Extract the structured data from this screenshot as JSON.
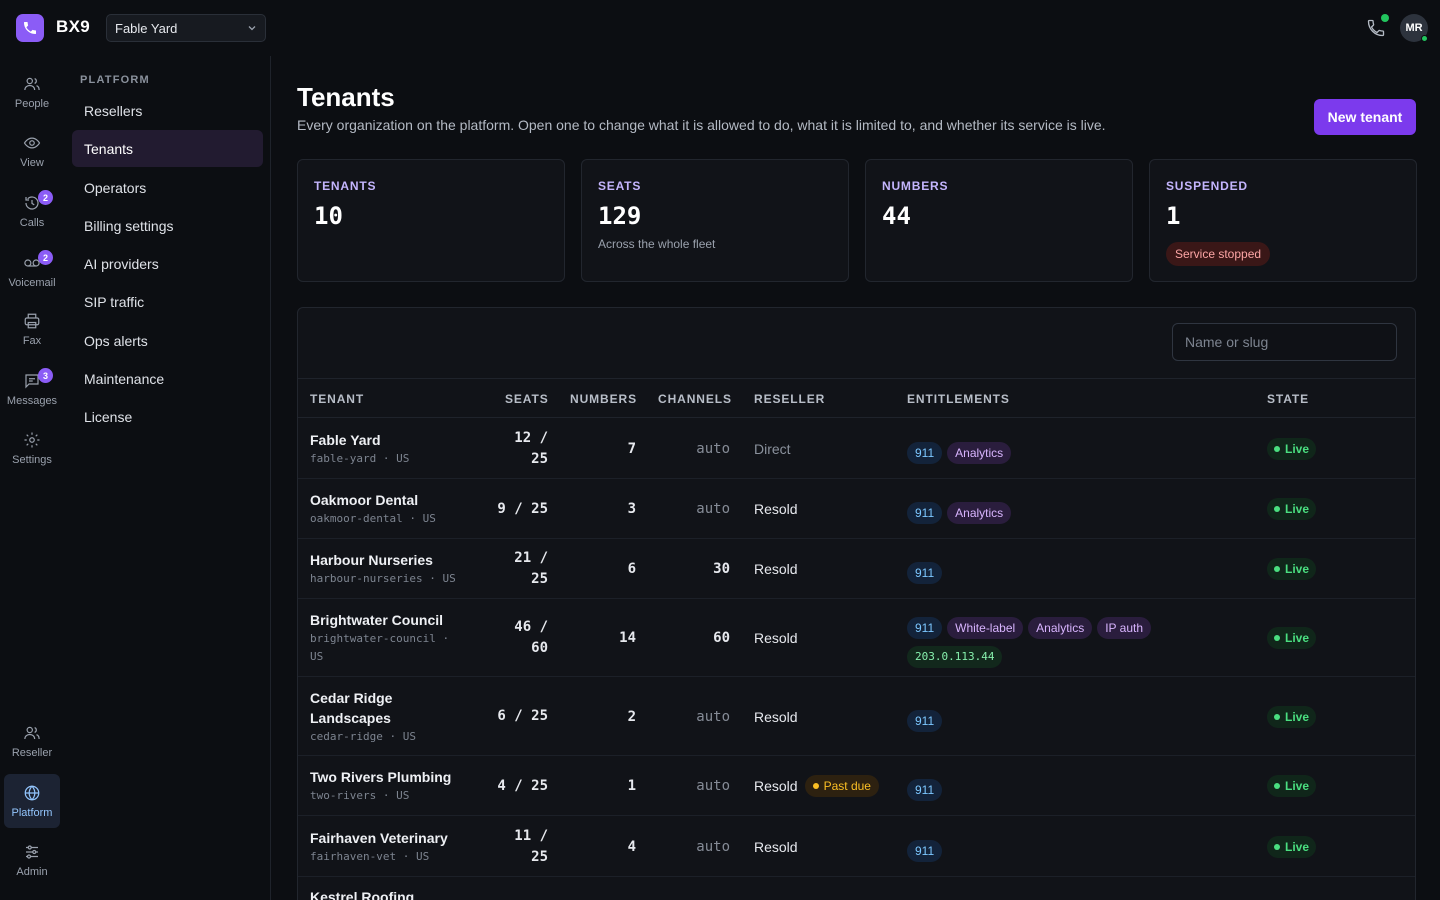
{
  "app": {
    "brand": "BX9",
    "workspace": "Fable Yard",
    "avatar": "MR"
  },
  "rail": [
    {
      "label": "People",
      "icon": "people-icon"
    },
    {
      "label": "View",
      "icon": "eye-icon"
    },
    {
      "label": "Calls",
      "icon": "calls-history-icon",
      "badge": "2"
    },
    {
      "label": "Voicemail",
      "icon": "voicemail-icon",
      "badge": "2"
    },
    {
      "label": "Fax",
      "icon": "printer-icon"
    },
    {
      "label": "Messages",
      "icon": "message-icon",
      "badge": "3"
    },
    {
      "label": "Settings",
      "icon": "gear-icon"
    },
    {
      "label": "Reseller",
      "icon": "reseller-icon"
    },
    {
      "label": "Platform",
      "icon": "globe-icon",
      "active": true
    },
    {
      "label": "Admin",
      "icon": "sliders-icon"
    }
  ],
  "subnav": {
    "heading": "PLATFORM",
    "items": [
      {
        "label": "Resellers"
      },
      {
        "label": "Tenants",
        "active": true
      },
      {
        "label": "Operators"
      },
      {
        "label": "Billing settings"
      },
      {
        "label": "AI providers"
      },
      {
        "label": "SIP traffic"
      },
      {
        "label": "Ops alerts"
      },
      {
        "label": "Maintenance"
      },
      {
        "label": "License"
      }
    ]
  },
  "page": {
    "title": "Tenants",
    "subtitle": "Every organization on the platform. Open one to change what it is allowed to do, what it is limited to, and whether its service is live.",
    "new_button": "New tenant"
  },
  "stats": [
    {
      "label": "TENANTS",
      "value": "10"
    },
    {
      "label": "SEATS",
      "value": "129",
      "note": "Across the whole fleet"
    },
    {
      "label": "NUMBERS",
      "value": "44"
    },
    {
      "label": "SUSPENDED",
      "value": "1",
      "pill": "Service stopped"
    }
  ],
  "table": {
    "search_placeholder": "Name or slug",
    "headers": {
      "tenant": "TENANT",
      "seats": "SEATS",
      "numbers": "NUMBERS",
      "channels": "CHANNELS",
      "reseller": "RESELLER",
      "entitlements": "ENTITLEMENTS",
      "state": "STATE"
    },
    "rows": [
      {
        "name": "Fable Yard",
        "slug": "fable-yard · US",
        "seats": "12 /\n25",
        "numbers": "7",
        "channels": "auto",
        "reseller": "Direct",
        "reseller_muted": true,
        "chips": [
          {
            "t": "911",
            "k": "c911"
          },
          {
            "t": "Analytics",
            "k": "feat"
          }
        ],
        "state": "Live"
      },
      {
        "name": "Oakmoor Dental",
        "slug": "oakmoor-dental · US",
        "seats": "9 / 25",
        "numbers": "3",
        "channels": "auto",
        "reseller": "Resold",
        "chips": [
          {
            "t": "911",
            "k": "c911"
          },
          {
            "t": "Analytics",
            "k": "feat"
          }
        ],
        "state": "Live"
      },
      {
        "name": "Harbour Nurseries",
        "slug": "harbour-nurseries · US",
        "seats": "21 /\n25",
        "numbers": "6",
        "channels": "30",
        "reseller": "Resold",
        "chips": [
          {
            "t": "911",
            "k": "c911"
          }
        ],
        "state": "Live"
      },
      {
        "name": "Brightwater Council",
        "slug": "brightwater-council ·\nUS",
        "seats": "46 /\n60",
        "numbers": "14",
        "channels": "60",
        "reseller": "Resold",
        "chips": [
          {
            "t": "911",
            "k": "c911"
          },
          {
            "t": "White-label",
            "k": "feat"
          },
          {
            "t": "Analytics",
            "k": "feat"
          },
          {
            "t": "IP auth",
            "k": "feat"
          },
          {
            "t": "203.0.113.44",
            "k": "ip"
          }
        ],
        "state": "Live"
      },
      {
        "name": "Cedar Ridge\nLandscapes",
        "slug": "cedar-ridge · US",
        "seats": "6 / 25",
        "numbers": "2",
        "channels": "auto",
        "reseller": "Resold",
        "chips": [
          {
            "t": "911",
            "k": "c911"
          }
        ],
        "state": "Live"
      },
      {
        "name": "Two Rivers Plumbing",
        "slug": "two-rivers · US",
        "seats": "4 / 25",
        "numbers": "1",
        "channels": "auto",
        "reseller": "Resold",
        "past_due": "Past due",
        "chips": [
          {
            "t": "911",
            "k": "c911"
          }
        ],
        "state": "Live"
      },
      {
        "name": "Fairhaven Veterinary",
        "slug": "fairhaven-vet · US",
        "seats": "11 /\n25",
        "numbers": "4",
        "channels": "auto",
        "reseller": "Resold",
        "chips": [
          {
            "t": "911",
            "k": "c911"
          }
        ],
        "state": "Live"
      },
      {
        "name": "Kestrel Roofing",
        "slug": "",
        "seats": "",
        "numbers": "",
        "channels": "",
        "reseller": "",
        "chips": [],
        "state": ""
      }
    ]
  },
  "colors": {
    "accent": "#7c3aed",
    "live": "#4ade80",
    "warning": "#fbbf24",
    "danger": "#fca5a5"
  }
}
